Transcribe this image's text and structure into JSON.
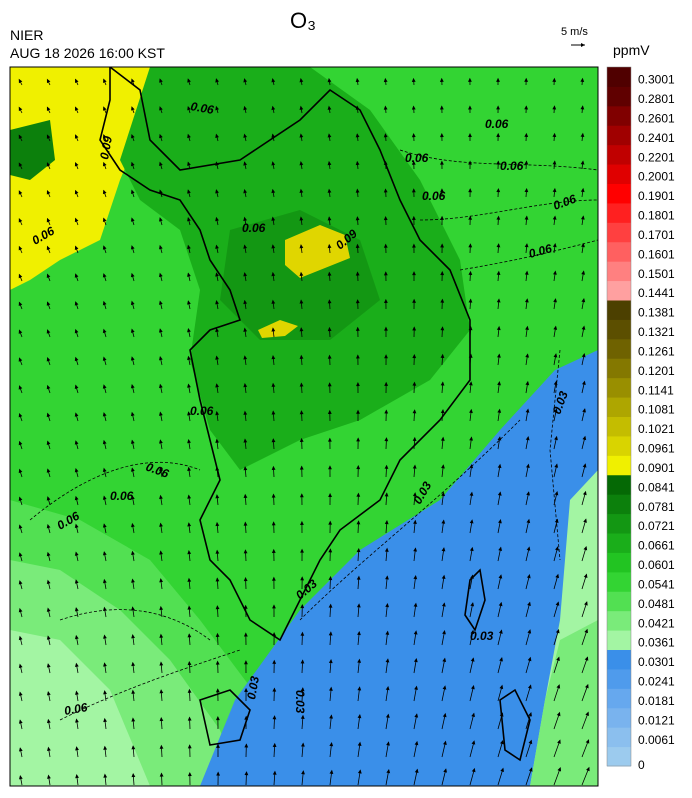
{
  "header": {
    "title": "O₃",
    "agency": "NIER",
    "datetime": "AUG 18 2026 16:00 KST",
    "vector_scale": "5 m/s",
    "unit": "ppmV"
  },
  "colorbar": {
    "levels": [
      0,
      0.0061,
      0.0121,
      0.0181,
      0.0241,
      0.0301,
      0.0361,
      0.0421,
      0.0481,
      0.0541,
      0.0601,
      0.0661,
      0.0721,
      0.0781,
      0.0841,
      0.0901,
      0.0961,
      0.1021,
      0.1081,
      0.1141,
      0.1201,
      0.1261,
      0.1321,
      0.1381,
      0.1441,
      0.1501,
      0.1601,
      0.1701,
      0.1801,
      0.1901,
      0.2001,
      0.2201,
      0.2401,
      0.2601,
      0.2801,
      0.3001
    ],
    "colors": [
      "#9ccbee",
      "#8bbfee",
      "#79b3ee",
      "#66a8ee",
      "#4f9bec",
      "#3a8fe9",
      "#a3f5a3",
      "#7aeb7a",
      "#52e052",
      "#33d433",
      "#22c422",
      "#1aae1a",
      "#139713",
      "#0c800c",
      "#056905",
      "#f0f000",
      "#d9d400",
      "#c4bd00",
      "#aea600",
      "#998f00",
      "#847800",
      "#6f6200",
      "#5c4f00",
      "#4c4000",
      "#ffa0a0",
      "#ff8080",
      "#ff6060",
      "#ff4040",
      "#ff2020",
      "#ff0000",
      "#e00000",
      "#c00000",
      "#a00000",
      "#800000",
      "#600000",
      "#500000"
    ]
  },
  "contour_labels": [
    "0.06",
    "0.06",
    "0.06",
    "0.06",
    "0.06",
    "0.06",
    "0.06",
    "0.06",
    "0.06",
    "0.06",
    "0.06",
    "0.06",
    "0.09",
    "0.03",
    "0.03",
    "0.03",
    "0.03",
    "0.03",
    "0.03",
    "0.09",
    "0.06",
    "0.06"
  ]
}
